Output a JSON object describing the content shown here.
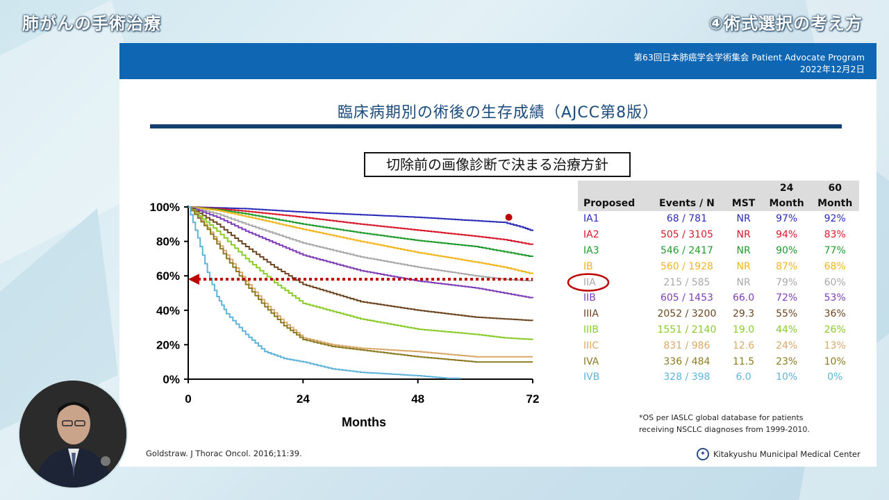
{
  "video": {
    "left_title": "肺がんの手術治療",
    "right_title": "④術式選択の考え方"
  },
  "slide": {
    "conference_line1": "第63回日本肺癌学会学術集会 Patient Advocate Program",
    "conference_line2": "2022年12月2日",
    "title": "臨床病期別の術後の生存成績（AJCC第8版）",
    "boxed_title": "切除前の画像診断で決まる治療方針",
    "citation": "Goldstraw. J Thorac Oncol. 2016;11:39.",
    "footnote_line1": "*OS per IASLC global database for patients",
    "footnote_line2": "receiving NSCLC diagnoses from 1999-2010.",
    "center_name": "Kitakyushu Municipal Medical Center"
  },
  "table": {
    "headers_top": [
      "",
      "",
      "",
      "24",
      "60"
    ],
    "headers_bottom": [
      "Proposed",
      "Events / N",
      "MST",
      "Month",
      "Month"
    ],
    "rows": [
      {
        "stage": "IA1",
        "events": "68 / 781",
        "mst": "NR",
        "m24": "97%",
        "m60": "92%",
        "color": "#2a2ab8"
      },
      {
        "stage": "IA2",
        "events": "505 / 3105",
        "mst": "NR",
        "m24": "94%",
        "m60": "83%",
        "color": "#d9182b"
      },
      {
        "stage": "IA3",
        "events": "546 / 2417",
        "mst": "NR",
        "m24": "90%",
        "m60": "77%",
        "color": "#1f9a2c"
      },
      {
        "stage": "IB",
        "events": "560 / 1928",
        "mst": "NR",
        "m24": "87%",
        "m60": "68%",
        "color": "#f2b51c"
      },
      {
        "stage": "IIA",
        "events": "215 / 585",
        "mst": "NR",
        "m24": "79%",
        "m60": "60%",
        "color": "#a8a8a8"
      },
      {
        "stage": "IIB",
        "events": "605 / 1453",
        "mst": "66.0",
        "m24": "72%",
        "m60": "53%",
        "color": "#7d3cb5"
      },
      {
        "stage": "IIIA",
        "events": "2052 / 3200",
        "mst": "29.3",
        "m24": "55%",
        "m60": "36%",
        "color": "#6b4520"
      },
      {
        "stage": "IIIB",
        "events": "1551 / 2140",
        "mst": "19.0",
        "m24": "44%",
        "m60": "26%",
        "color": "#8acb2a"
      },
      {
        "stage": "IIIC",
        "events": "831 / 986",
        "mst": "12.6",
        "m24": "24%",
        "m60": "13%",
        "color": "#d9a86a"
      },
      {
        "stage": "IVA",
        "events": "336 / 484",
        "mst": "11.5",
        "m24": "23%",
        "m60": "10%",
        "color": "#8b7a22"
      },
      {
        "stage": "IVB",
        "events": "328 / 398",
        "mst": "6.0",
        "m24": "10%",
        "m60": "0%",
        "color": "#5fb3d9"
      }
    ]
  },
  "chart_data": {
    "type": "line",
    "xlabel": "Months",
    "ylabel": "",
    "xlim": [
      0,
      72
    ],
    "ylim": [
      0,
      100
    ],
    "x_ticks": [
      "0",
      "24",
      "48",
      "72"
    ],
    "y_ticks": [
      "0%",
      "20%",
      "40%",
      "60%",
      "80%",
      "100%"
    ],
    "reference_line": {
      "y": 58,
      "style": "dotted-arrow",
      "color": "#c00000"
    },
    "highlight": {
      "stage": "IIA",
      "color": "#c00000"
    },
    "marker": {
      "x": 67,
      "y": 94,
      "color": "#c00000"
    },
    "series": [
      {
        "name": "IA1",
        "color": "#2a2ab8",
        "x": [
          0,
          6,
          12,
          24,
          36,
          48,
          60,
          66,
          70,
          72
        ],
        "y": [
          100,
          99.5,
          99,
          97,
          95.5,
          94,
          92,
          91,
          88,
          86
        ]
      },
      {
        "name": "IA2",
        "color": "#d9182b",
        "x": [
          0,
          6,
          12,
          24,
          36,
          48,
          60,
          66,
          72
        ],
        "y": [
          100,
          99,
          97.5,
          94,
          90,
          86.5,
          83,
          81,
          78
        ]
      },
      {
        "name": "IA3",
        "color": "#1f9a2c",
        "x": [
          0,
          6,
          12,
          24,
          36,
          48,
          60,
          66,
          72
        ],
        "y": [
          100,
          98.5,
          96,
          90,
          85,
          80.5,
          77,
          74,
          71
        ]
      },
      {
        "name": "IB",
        "color": "#f2b51c",
        "x": [
          0,
          6,
          12,
          24,
          36,
          48,
          60,
          66,
          72
        ],
        "y": [
          100,
          98,
          94.5,
          87,
          80,
          73.5,
          68,
          65,
          61
        ]
      },
      {
        "name": "IIA",
        "color": "#a8a8a8",
        "x": [
          0,
          6,
          12,
          24,
          36,
          48,
          60,
          66,
          72
        ],
        "y": [
          100,
          96,
          90,
          79,
          71,
          65,
          60,
          58,
          57
        ]
      },
      {
        "name": "IIB",
        "color": "#7d3cb5",
        "x": [
          0,
          6,
          12,
          24,
          36,
          48,
          60,
          66,
          72
        ],
        "y": [
          100,
          94,
          86,
          72,
          63,
          57,
          53,
          50,
          47
        ]
      },
      {
        "name": "IIIA",
        "color": "#6b4520",
        "x": [
          0,
          6,
          12,
          18,
          24,
          36,
          48,
          60,
          66,
          72
        ],
        "y": [
          100,
          90,
          77,
          65,
          55,
          45,
          40,
          36,
          35,
          34
        ]
      },
      {
        "name": "IIIB",
        "color": "#8acb2a",
        "x": [
          0,
          6,
          12,
          18,
          24,
          36,
          48,
          60,
          66,
          72
        ],
        "y": [
          100,
          86,
          70,
          56,
          44,
          35,
          29,
          26,
          24,
          23
        ]
      },
      {
        "name": "IIIC",
        "color": "#d9a86a",
        "x": [
          0,
          4,
          8,
          12,
          16,
          20,
          24,
          30,
          36,
          48,
          60,
          72
        ],
        "y": [
          100,
          88,
          72,
          57,
          44,
          33,
          24,
          20,
          18,
          16,
          13,
          13
        ]
      },
      {
        "name": "IVA",
        "color": "#8b7a22",
        "x": [
          0,
          4,
          8,
          12,
          16,
          20,
          24,
          30,
          36,
          48,
          60,
          72
        ],
        "y": [
          100,
          87,
          70,
          55,
          42,
          31,
          23,
          19,
          17,
          13,
          10,
          10
        ]
      },
      {
        "name": "IVB",
        "color": "#5fb3d9",
        "x": [
          0,
          2,
          4,
          6,
          8,
          12,
          16,
          20,
          24,
          30,
          36,
          48,
          54,
          57
        ],
        "y": [
          100,
          82,
          62,
          48,
          38,
          26,
          16,
          12,
          10,
          6,
          4,
          2,
          0.5,
          0.5
        ]
      }
    ]
  }
}
